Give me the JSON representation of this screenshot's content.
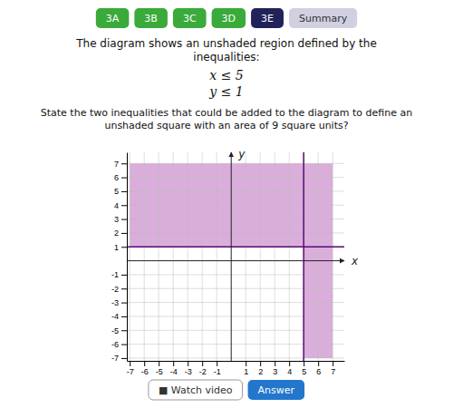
{
  "chart_data": {
    "type": "region",
    "title": "The diagram shows an unshaded region defined by the inequalities:",
    "subtitle": "State the two inequalities that could be added to the diagram to define an unshaded square with an area of 9 square units?",
    "xlabel": "x",
    "ylabel": "y",
    "xlim": [
      -7.2,
      7.8
    ],
    "ylim": [
      -7.2,
      7.8
    ],
    "xticks": [
      -7,
      -6,
      -5,
      -4,
      -3,
      -2,
      -1,
      1,
      2,
      3,
      4,
      5,
      6,
      7
    ],
    "yticks": [
      -7,
      -6,
      -5,
      -4,
      -3,
      -2,
      -1,
      1,
      2,
      3,
      4,
      5,
      6,
      7
    ],
    "grid": true,
    "color": "#d4a0d4",
    "boundaries": [
      {
        "axis": "x",
        "value": 5,
        "label": "x ≤ 5",
        "color": "#5a0a7a"
      },
      {
        "axis": "y",
        "value": 1,
        "label": "y ≤ 1",
        "color": "#5a0a7a"
      }
    ],
    "annotations": [
      [
        {
          "text": "3A",
          "color": "#3aaa3a"
        },
        {
          "text": "3B",
          "color": "#3aaa3a"
        },
        {
          "text": "3C",
          "color": "#3aaa3a"
        },
        {
          "text": "3D",
          "color": "#3aaa3a"
        },
        {
          "text": "3E",
          "color": "#22225a"
        },
        {
          "text": "Summary",
          "color": "#d0d0e0"
        }
      ],
      [
        {
          "text": "■ Watch video"
        },
        {
          "text": "Answer",
          "color": "#2277cc"
        }
      ]
    ]
  }
}
